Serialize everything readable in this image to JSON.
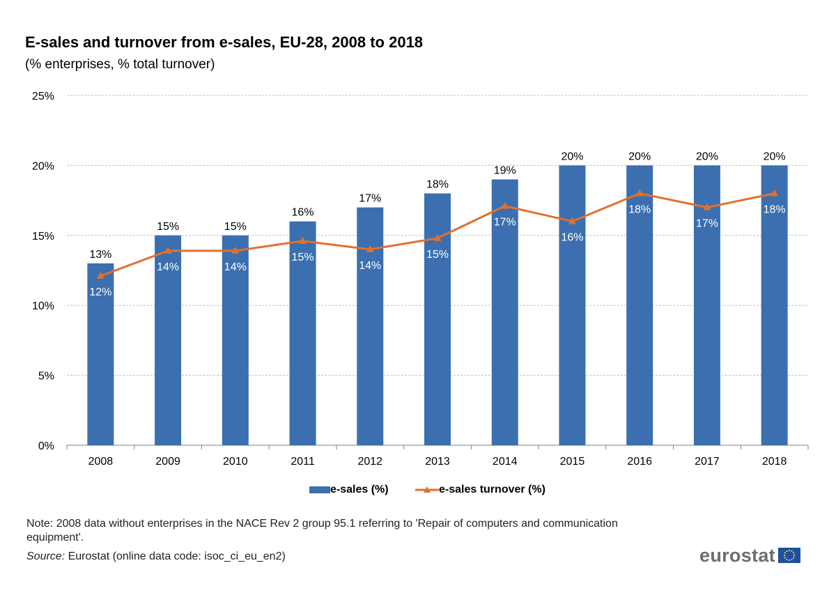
{
  "title": "E-sales and turnover from e-sales, EU-28, 2008 to 2018",
  "subtitle": "(% enterprises, % total turnover)",
  "note": "Note: 2008 data without enterprises in the NACE Rev 2 group 95.1 referring to 'Repair of computers and communication equipment'.",
  "source_label": "Source:",
  "source_text": " Eurostat (online data code: isoc_ci_eu_en2)",
  "logo": {
    "text": "eurostat",
    "flag_icon": "eu-flag-icon"
  },
  "colors": {
    "bar": "#3b6fb0",
    "line": "#e0702e",
    "grid": "#bfbfbf",
    "axis": "#7f7f7f"
  },
  "chart_data": {
    "type": "bar",
    "categories": [
      "2008",
      "2009",
      "2010",
      "2011",
      "2012",
      "2013",
      "2014",
      "2015",
      "2016",
      "2017",
      "2018"
    ],
    "series": [
      {
        "name": "e-sales (%)",
        "type": "bar",
        "values": [
          13,
          15,
          15,
          16,
          17,
          18,
          19,
          20,
          20,
          20,
          20
        ],
        "labels": [
          "13%",
          "15%",
          "15%",
          "16%",
          "17%",
          "18%",
          "19%",
          "20%",
          "20%",
          "20%",
          "20%"
        ]
      },
      {
        "name": "e-sales turnover (%)",
        "type": "line",
        "marker": "triangle",
        "values": [
          12.1,
          13.9,
          13.9,
          14.6,
          14.0,
          14.8,
          17.1,
          16.0,
          18.0,
          17.0,
          18.0
        ],
        "labels": [
          "12%",
          "14%",
          "14%",
          "15%",
          "14%",
          "15%",
          "17%",
          "16%",
          "18%",
          "17%",
          "18%"
        ]
      }
    ],
    "ylim": [
      0,
      25
    ],
    "yticks": [
      0,
      5,
      10,
      15,
      20,
      25
    ],
    "ytick_labels": [
      "0%",
      "5%",
      "10%",
      "15%",
      "20%",
      "25%"
    ],
    "grid": true,
    "legend_position": "bottom"
  }
}
